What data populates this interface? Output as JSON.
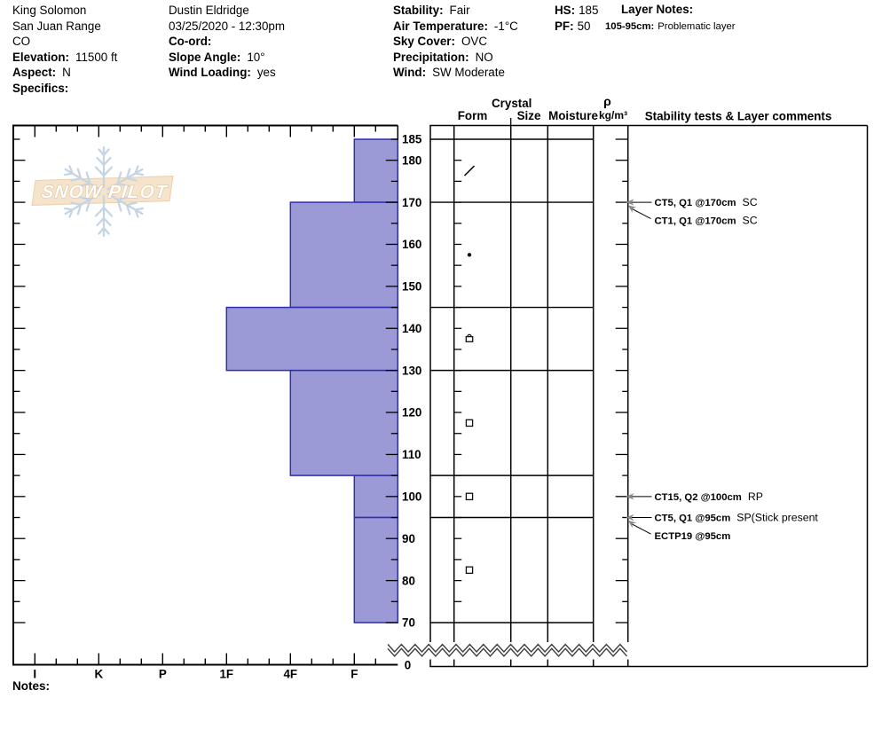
{
  "header": {
    "site": {
      "name": "King Solomon",
      "range": "San Juan Range",
      "state": "CO",
      "elevation_label": "Elevation:",
      "elevation": "11500 ft",
      "aspect_label": "Aspect:",
      "aspect": "N",
      "specifics_label": "Specifics:"
    },
    "observer": {
      "name": "Dustin Eldridge",
      "datetime": "03/25/2020 - 12:30pm",
      "coord_label": "Co-ord:",
      "slope_label": "Slope Angle:",
      "slope": "10°",
      "wind_loading_label": "Wind Loading:",
      "wind_loading": "yes"
    },
    "conditions": {
      "stability_label": "Stability:",
      "stability": "Fair",
      "air_temp_label": "Air Temperature:",
      "air_temp": "-1°C",
      "sky_label": "Sky Cover:",
      "sky": "OVC",
      "precip_label": "Precipitation:",
      "precip": "NO",
      "wind_label": "Wind:",
      "wind": "SW Moderate"
    },
    "totals": {
      "hs_label": "HS:",
      "hs": "185",
      "pf_label": "PF:",
      "pf": "50"
    },
    "layer_notes": {
      "title": "Layer Notes:",
      "items": [
        {
          "range_label": "105-95cm:",
          "note": "Problematic layer"
        }
      ]
    }
  },
  "notes_label": "Notes:",
  "logo_text": "SNOW PILOT",
  "chart_data": {
    "type": "bar",
    "subtype": "snow-hardness-profile",
    "title": "Snow pit hardness profile",
    "depth_unit": "cm",
    "depth_labels": [
      185,
      180,
      170,
      160,
      150,
      140,
      130,
      120,
      110,
      100,
      90,
      80,
      70
    ],
    "depth_axis_break_label": "0",
    "snow_height_cm": 185,
    "profile_bottom_cm": 70,
    "hardness_categories": [
      "I",
      "K",
      "P",
      "1F",
      "4F",
      "F"
    ],
    "layers": [
      {
        "top_cm": 185,
        "bottom_cm": 170,
        "hardness": "F",
        "grain_form": "DF",
        "grain_symbol": "slash"
      },
      {
        "top_cm": 170,
        "bottom_cm": 145,
        "hardness": "4F",
        "grain_form": "RG",
        "grain_symbol": "dot"
      },
      {
        "top_cm": 145,
        "bottom_cm": 130,
        "hardness": "1F",
        "grain_form": "FCxr",
        "grain_symbol": "square-arc"
      },
      {
        "top_cm": 130,
        "bottom_cm": 105,
        "hardness": "4F",
        "grain_form": "FC",
        "grain_symbol": "square"
      },
      {
        "top_cm": 105,
        "bottom_cm": 95,
        "hardness": "F",
        "grain_form": "FC",
        "grain_symbol": "square"
      },
      {
        "top_cm": 95,
        "bottom_cm": 70,
        "hardness": "F",
        "grain_form": "FC",
        "grain_symbol": "square"
      }
    ],
    "table_columns": {
      "crystal_group": "Crystal",
      "form": "Form",
      "size": "Size",
      "moisture": "Moisture",
      "density_symbol": "ρ",
      "density_unit": "kg/m³",
      "stability": "Stability tests & Layer comments"
    },
    "stability_tests": [
      {
        "depth_cm": 170,
        "label": "CT5, Q1 @170cm",
        "comment": "SC",
        "arrow": "straight"
      },
      {
        "depth_cm": 170,
        "label": "CT1, Q1 @170cm",
        "comment": "SC",
        "arrow": "diagonal"
      },
      {
        "depth_cm": 100,
        "label": "CT15, Q2 @100cm",
        "comment": "RP",
        "arrow": "straight"
      },
      {
        "depth_cm": 95,
        "label": "CT5, Q1 @95cm",
        "comment": "SP(Stick present",
        "arrow": "straight"
      },
      {
        "depth_cm": 95,
        "label": "ECTP19 @95cm",
        "comment": "",
        "arrow": "diagonal"
      }
    ],
    "colors": {
      "bar_fill": "#9b99d6",
      "bar_border": "#2e2eb0",
      "axis": "#000000",
      "arrow_gray": "#8a8a8a",
      "logo_snowflake": "#c5d5e4",
      "logo_band_fill": "#f6e3cb",
      "logo_band_edge": "#eccfa8",
      "logo_text_edge": "#dcb992"
    }
  }
}
